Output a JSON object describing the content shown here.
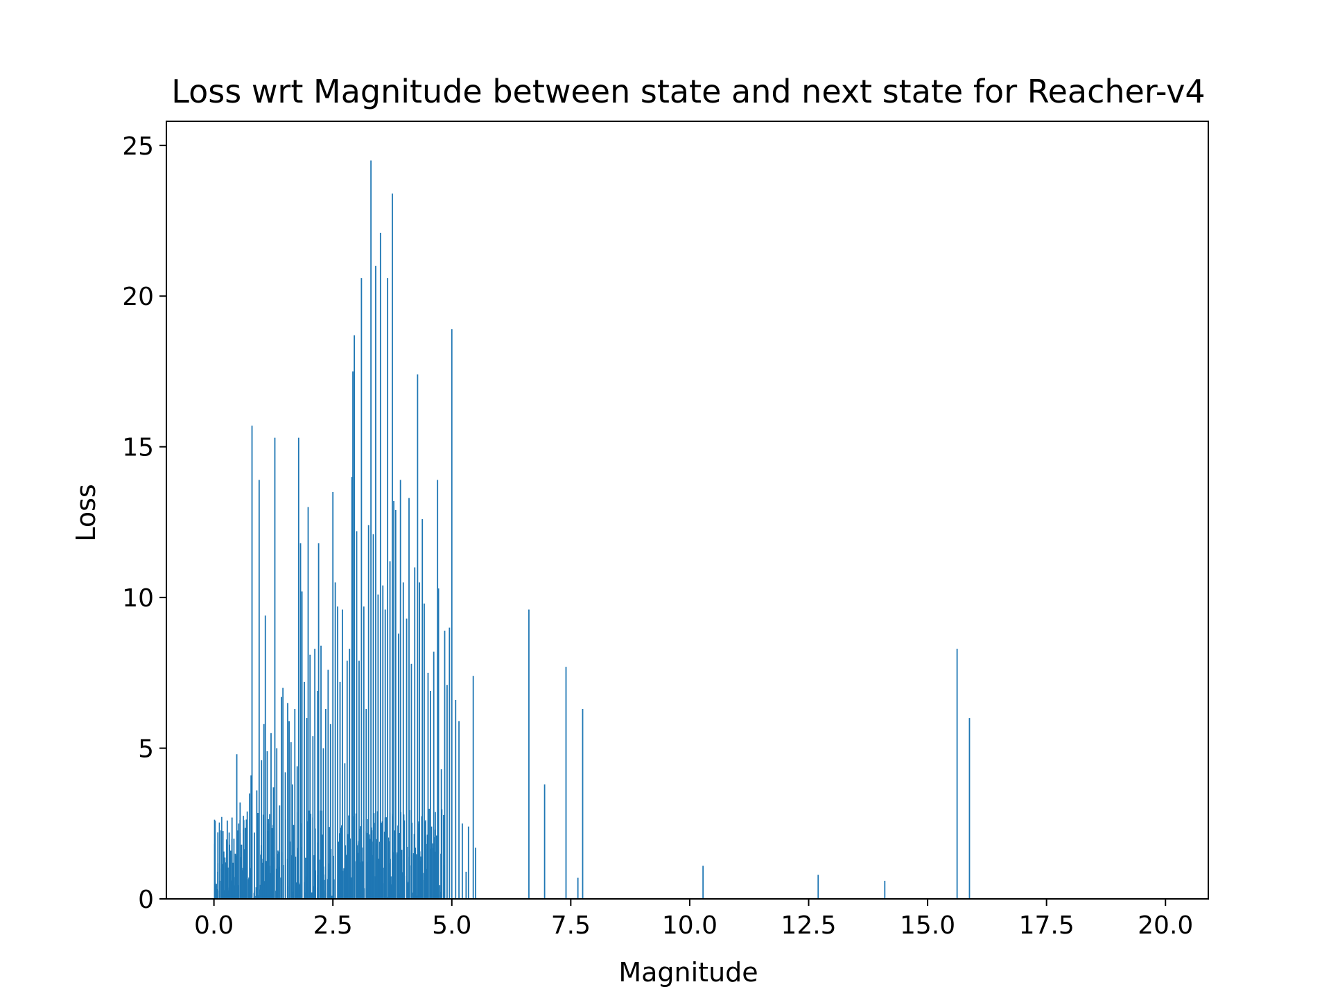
{
  "chart_data": {
    "type": "bar",
    "title": "Loss wrt Magnitude between state and next state for Reacher-v4",
    "xlabel": "Magnitude",
    "ylabel": "Loss",
    "xlim": [
      -1.0,
      20.9
    ],
    "ylim": [
      0,
      25.8
    ],
    "xticks": [
      "0.0",
      "2.5",
      "5.0",
      "7.5",
      "10.0",
      "12.5",
      "15.0",
      "17.5",
      "20.0"
    ],
    "yticks": [
      "0",
      "5",
      "10",
      "15",
      "20",
      "25"
    ],
    "bar_color": "#1f77b4",
    "grid": false,
    "legend": "none",
    "points": [
      [
        0.02,
        0.4
      ],
      [
        0.05,
        0.5
      ],
      [
        0.08,
        0.9
      ],
      [
        0.12,
        0.6
      ],
      [
        0.15,
        1.0
      ],
      [
        0.2,
        0.8
      ],
      [
        0.25,
        1.2
      ],
      [
        0.28,
        2.6
      ],
      [
        0.32,
        2.2
      ],
      [
        0.35,
        1.6
      ],
      [
        0.38,
        2.7
      ],
      [
        0.42,
        2.0
      ],
      [
        0.45,
        1.5
      ],
      [
        0.48,
        4.8
      ],
      [
        0.52,
        2.5
      ],
      [
        0.55,
        3.2
      ],
      [
        0.58,
        1.8
      ],
      [
        0.62,
        2.3
      ],
      [
        0.65,
        1.2
      ],
      [
        0.7,
        2.9
      ],
      [
        0.75,
        3.5
      ],
      [
        0.78,
        4.1
      ],
      [
        0.8,
        15.7
      ],
      [
        0.85,
        2.2
      ],
      [
        0.9,
        3.6
      ],
      [
        0.95,
        13.9
      ],
      [
        1.0,
        4.6
      ],
      [
        1.05,
        5.8
      ],
      [
        1.08,
        9.4
      ],
      [
        1.12,
        4.9
      ],
      [
        1.15,
        2.5
      ],
      [
        1.2,
        5.5
      ],
      [
        1.25,
        3.7
      ],
      [
        1.28,
        15.3
      ],
      [
        1.32,
        5.0
      ],
      [
        1.38,
        3.1
      ],
      [
        1.42,
        6.7
      ],
      [
        1.45,
        7.0
      ],
      [
        1.5,
        4.2
      ],
      [
        1.55,
        6.5
      ],
      [
        1.58,
        5.9
      ],
      [
        1.62,
        5.2
      ],
      [
        1.65,
        3.8
      ],
      [
        1.7,
        6.3
      ],
      [
        1.75,
        4.4
      ],
      [
        1.78,
        15.3
      ],
      [
        1.82,
        11.8
      ],
      [
        1.85,
        10.2
      ],
      [
        1.9,
        7.2
      ],
      [
        1.95,
        6.0
      ],
      [
        1.98,
        13.0
      ],
      [
        2.02,
        8.1
      ],
      [
        2.08,
        5.4
      ],
      [
        2.12,
        8.3
      ],
      [
        2.18,
        6.9
      ],
      [
        2.2,
        11.8
      ],
      [
        2.25,
        8.4
      ],
      [
        2.3,
        5.0
      ],
      [
        2.35,
        6.3
      ],
      [
        2.4,
        7.6
      ],
      [
        2.45,
        5.8
      ],
      [
        2.5,
        13.5
      ],
      [
        2.55,
        10.5
      ],
      [
        2.6,
        9.7
      ],
      [
        2.65,
        7.2
      ],
      [
        2.7,
        9.6
      ],
      [
        2.75,
        4.5
      ],
      [
        2.8,
        7.9
      ],
      [
        2.85,
        8.3
      ],
      [
        2.9,
        14.0
      ],
      [
        2.92,
        17.5
      ],
      [
        2.95,
        18.7
      ],
      [
        3.0,
        12.2
      ],
      [
        3.05,
        7.9
      ],
      [
        3.1,
        20.6
      ],
      [
        3.15,
        9.7
      ],
      [
        3.2,
        6.3
      ],
      [
        3.25,
        12.4
      ],
      [
        3.3,
        24.5
      ],
      [
        3.35,
        12.1
      ],
      [
        3.4,
        21.0
      ],
      [
        3.45,
        10.1
      ],
      [
        3.5,
        22.1
      ],
      [
        3.55,
        10.4
      ],
      [
        3.6,
        9.6
      ],
      [
        3.65,
        20.6
      ],
      [
        3.7,
        11.2
      ],
      [
        3.75,
        23.4
      ],
      [
        3.78,
        13.2
      ],
      [
        3.82,
        12.9
      ],
      [
        3.88,
        8.8
      ],
      [
        3.92,
        13.9
      ],
      [
        3.98,
        10.5
      ],
      [
        4.05,
        9.3
      ],
      [
        4.1,
        13.3
      ],
      [
        4.15,
        7.8
      ],
      [
        4.22,
        11.0
      ],
      [
        4.28,
        17.4
      ],
      [
        4.32,
        10.5
      ],
      [
        4.38,
        12.6
      ],
      [
        4.42,
        9.8
      ],
      [
        4.5,
        7.5
      ],
      [
        4.55,
        6.9
      ],
      [
        4.62,
        8.2
      ],
      [
        4.65,
        2.3
      ],
      [
        4.7,
        13.9
      ],
      [
        4.72,
        10.3
      ],
      [
        4.78,
        4.3
      ],
      [
        4.85,
        8.9
      ],
      [
        4.9,
        7.1
      ],
      [
        4.95,
        9.0
      ],
      [
        5.0,
        18.9
      ],
      [
        5.08,
        6.6
      ],
      [
        5.15,
        5.9
      ],
      [
        5.22,
        2.5
      ],
      [
        5.3,
        0.9
      ],
      [
        5.35,
        2.4
      ],
      [
        5.45,
        7.4
      ],
      [
        5.5,
        1.7
      ],
      [
        6.62,
        9.6
      ],
      [
        6.95,
        3.8
      ],
      [
        7.4,
        7.7
      ],
      [
        7.65,
        0.7
      ],
      [
        7.75,
        6.3
      ],
      [
        10.28,
        1.1
      ],
      [
        12.7,
        0.8
      ],
      [
        14.1,
        0.6
      ],
      [
        15.62,
        8.3
      ],
      [
        15.88,
        6.0
      ]
    ],
    "dense_band": {
      "x_range": [
        0.0,
        4.85
      ],
      "y_max": 3.0,
      "count": 520
    }
  }
}
